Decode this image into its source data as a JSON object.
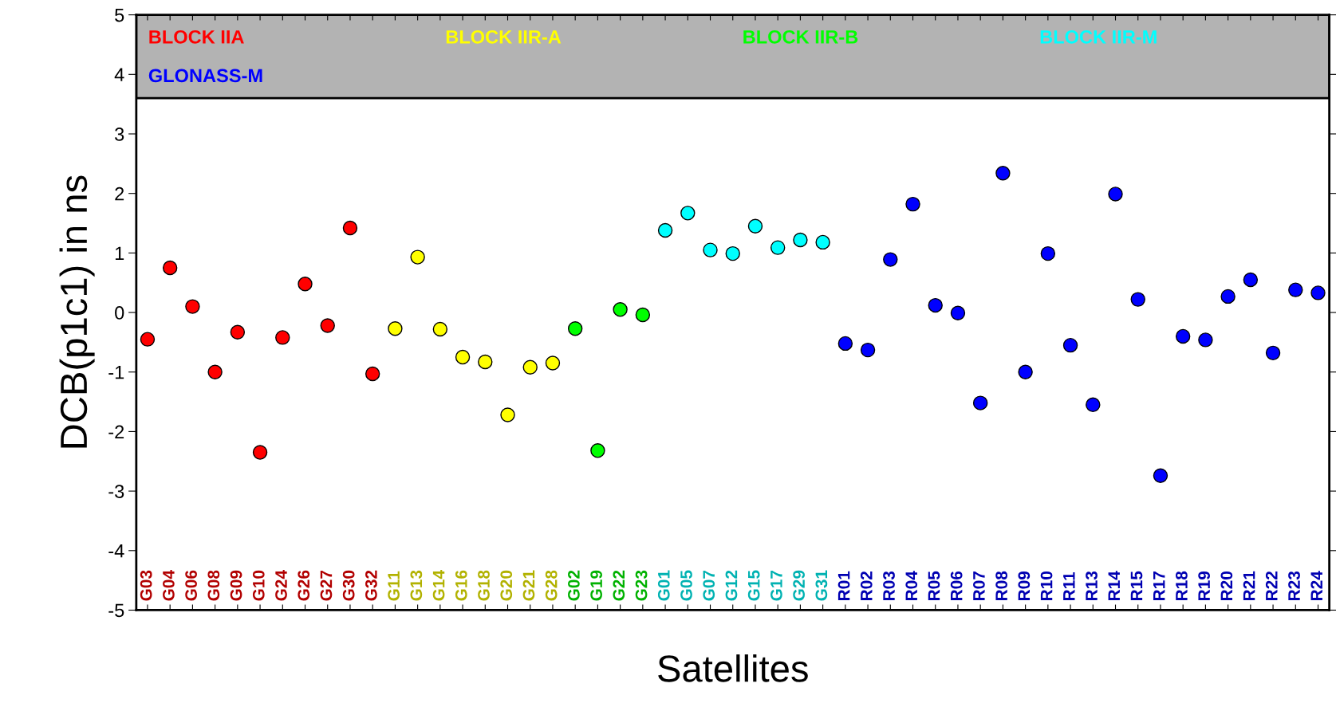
{
  "chart_data": {
    "type": "scatter",
    "xlabel": "Satellites",
    "ylabel": "DCB(p1c1) in ns",
    "categories": [
      "G03",
      "G04",
      "G06",
      "G08",
      "G09",
      "G10",
      "G24",
      "G26",
      "G27",
      "G30",
      "G32",
      "G11",
      "G13",
      "G14",
      "G16",
      "G18",
      "G20",
      "G21",
      "G28",
      "G02",
      "G19",
      "G22",
      "G23",
      "G01",
      "G05",
      "G07",
      "G12",
      "G15",
      "G17",
      "G29",
      "G31",
      "R01",
      "R02",
      "R03",
      "R04",
      "R05",
      "R06",
      "R07",
      "R08",
      "R09",
      "R10",
      "R11",
      "R13",
      "R14",
      "R15",
      "R17",
      "R18",
      "R19",
      "R20",
      "R21",
      "R22",
      "R23",
      "R24"
    ],
    "series": [
      {
        "name": "BLOCK IIA",
        "color": "#ff0000",
        "values": [
          -0.45,
          0.75,
          0.1,
          -1.0,
          -0.33,
          -2.35,
          -0.42,
          0.48,
          -0.22,
          1.42,
          -1.03,
          null,
          null,
          null,
          null,
          null,
          null,
          null,
          null,
          null,
          null,
          null,
          null,
          null,
          null,
          null,
          null,
          null,
          null,
          null,
          null,
          null,
          null,
          null,
          null,
          null,
          null,
          null,
          null,
          null,
          null,
          null,
          null,
          null,
          null,
          null,
          null,
          null,
          null,
          null,
          null,
          null,
          null
        ]
      },
      {
        "name": "BLOCK IIR-A",
        "color": "#ffff00",
        "values": [
          null,
          null,
          null,
          null,
          null,
          null,
          null,
          null,
          null,
          null,
          null,
          -0.27,
          0.93,
          -0.28,
          -0.75,
          -0.83,
          -1.72,
          -0.92,
          -0.85,
          null,
          null,
          null,
          null,
          null,
          null,
          null,
          null,
          null,
          null,
          null,
          null,
          null,
          null,
          null,
          null,
          null,
          null,
          null,
          null,
          null,
          null,
          null,
          null,
          null,
          null,
          null,
          null,
          null,
          null,
          null,
          null,
          null,
          null
        ]
      },
      {
        "name": "BLOCK IIR-B",
        "color": "#00ff00",
        "values": [
          null,
          null,
          null,
          null,
          null,
          null,
          null,
          null,
          null,
          null,
          null,
          null,
          null,
          null,
          null,
          null,
          null,
          null,
          null,
          -0.27,
          -2.32,
          0.05,
          -0.04,
          null,
          null,
          null,
          null,
          null,
          null,
          null,
          null,
          null,
          null,
          null,
          null,
          null,
          null,
          null,
          null,
          null,
          null,
          null,
          null,
          null,
          null,
          null,
          null,
          null,
          null,
          null,
          null,
          null,
          null
        ]
      },
      {
        "name": "BLOCK IIR-M",
        "color": "#00ffff",
        "values": [
          null,
          null,
          null,
          null,
          null,
          null,
          null,
          null,
          null,
          null,
          null,
          null,
          null,
          null,
          null,
          null,
          null,
          null,
          null,
          null,
          null,
          null,
          null,
          1.38,
          1.67,
          1.05,
          0.99,
          1.45,
          1.09,
          1.22,
          1.18,
          null,
          null,
          null,
          null,
          null,
          null,
          null,
          null,
          null,
          null,
          null,
          null,
          null,
          null,
          null,
          null,
          null,
          null,
          null,
          null,
          null,
          null
        ]
      },
      {
        "name": "GLONASS-M",
        "color": "#0000ff",
        "values": [
          null,
          null,
          null,
          null,
          null,
          null,
          null,
          null,
          null,
          null,
          null,
          null,
          null,
          null,
          null,
          null,
          null,
          null,
          null,
          null,
          null,
          null,
          null,
          null,
          null,
          null,
          null,
          null,
          null,
          null,
          null,
          -0.52,
          -0.63,
          0.89,
          1.82,
          0.12,
          -0.01,
          -1.52,
          2.34,
          -1.0,
          0.99,
          -0.55,
          -1.55,
          1.99,
          0.22,
          -2.74,
          -0.4,
          -0.46,
          0.27,
          0.55,
          -0.68,
          0.38,
          0.33
        ]
      }
    ],
    "ylim": [
      -5,
      5
    ],
    "yticks": [
      -5,
      -4,
      -3,
      -2,
      -1,
      0,
      1,
      2,
      3,
      4,
      5
    ],
    "marker": "circle",
    "legend": "top",
    "grid": false
  }
}
